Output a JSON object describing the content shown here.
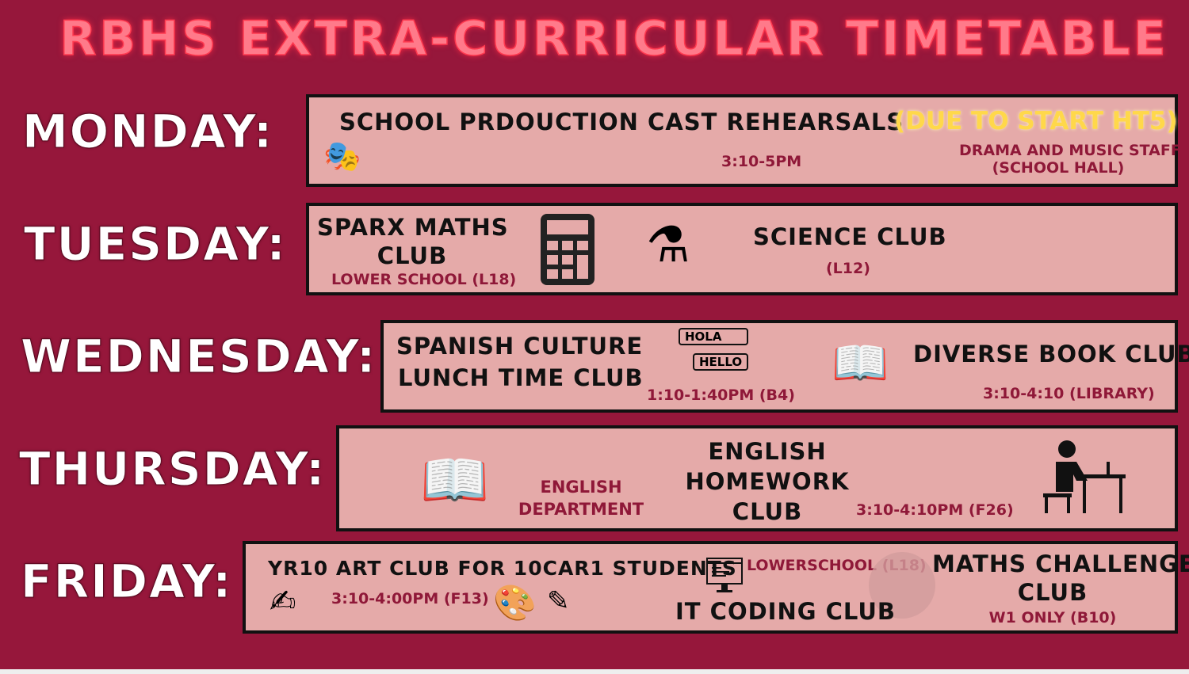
{
  "title": "RBHS EXTRA-CURRICULAR TIMETABLE",
  "colors": {
    "background": "#96173b",
    "box": "#e5aaa9",
    "title": "#ff4a5e",
    "accent_text": "#8f1838",
    "highlight": "#ffd84a"
  },
  "days": {
    "monday": {
      "label": "MONDAY:",
      "event": "SCHOOL PRDOUCTION CAST REHEARSALS",
      "note": "(DUE TO START HT5)",
      "time": "3:10-5PM",
      "staff": "DRAMA AND MUSIC STAFF",
      "location": "(SCHOOL HALL)",
      "icon": "theatre-masks-icon"
    },
    "tuesday": {
      "label": "TUESDAY:",
      "club1": {
        "name1": "SPARX MATHS",
        "name2": "CLUB",
        "location": "LOWER SCHOOL (L18)",
        "icon": "calculator-icon"
      },
      "club2": {
        "name": "SCIENCE CLUB",
        "location": "(L12)",
        "icon": "flasks-icon"
      }
    },
    "wednesday": {
      "label": "WEDNESDAY:",
      "club1": {
        "name1": "SPANISH CULTURE",
        "name2": "LUNCH TIME CLUB",
        "time": "1:10-1:40PM (B4)",
        "icon": "hola-hello-icon",
        "hola": "HOLA",
        "hello": "HELLO"
      },
      "club2": {
        "name": "DIVERSE BOOK CLUB",
        "time": "3:10-4:10 (LIBRARY)",
        "icon": "open-book-flowers-icon"
      }
    },
    "thursday": {
      "label": "THURSDAY:",
      "department1": "ENGLISH",
      "department2": "DEPARTMENT",
      "name1": "ENGLISH",
      "name2": "HOMEWORK",
      "name3": "CLUB",
      "time": "3:10-4:10PM (F26)",
      "icons": [
        "book-pen-icon",
        "student-desk-icon"
      ]
    },
    "friday": {
      "label": "FRIDAY:",
      "art": {
        "name": "YR10 ART CLUB FOR 10CAR1 STUDENTS",
        "time": "3:10-4:00PM (F13)",
        "icons": [
          "drawing-hand-icon",
          "palette-icon",
          "art-tools-icon"
        ]
      },
      "coding": {
        "name": "IT CODING CLUB",
        "location": "LOWERSCHOOL (L18)",
        "icon": "computer-code-icon"
      },
      "maths": {
        "name1": "MATHS CHALLENGE",
        "name2": "CLUB",
        "location": "W1 ONLY (B10)"
      }
    }
  }
}
